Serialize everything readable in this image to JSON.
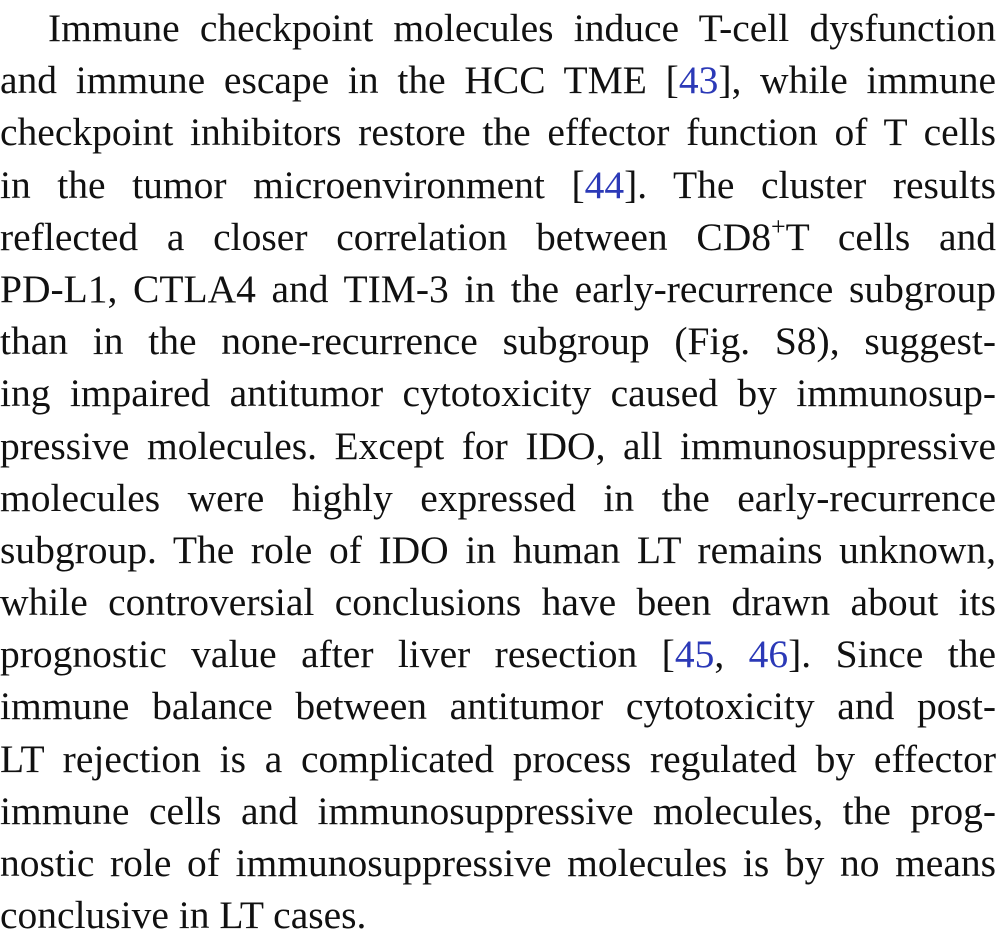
{
  "paragraph": {
    "lines": [
      {
        "a": "Immune checkpoint molecules induce T-cell dysfunction"
      },
      {
        "a": "and immune escape in the HCC TME [",
        "c1": "43",
        "b": "], while immune"
      },
      {
        "a": "checkpoint inhibitors restore the effector function of T cells"
      },
      {
        "a": "in the tumor microenvironment [",
        "c1": "44",
        "b": "]. The cluster results"
      },
      {
        "a": "reflected a closer correlation between CD8",
        "sup": "+",
        "b": "T cells and"
      },
      {
        "a": "PD-L1, CTLA4 and TIM-3 in the early-recurrence subgroup"
      },
      {
        "a": "than in the none-recurrence subgroup (Fig. S8), suggest-"
      },
      {
        "a": "ing impaired antitumor cytotoxicity caused by immunosup-"
      },
      {
        "a": "pressive molecules. Except for IDO, all immunosuppressive"
      },
      {
        "a": "molecules were highly expressed in the early-recurrence"
      },
      {
        "a": "subgroup. The role of IDO in human LT remains unknown,"
      },
      {
        "a": "while controversial conclusions have been drawn about its"
      },
      {
        "a": "prognostic value after liver resection [",
        "c1": "45",
        "m": ", ",
        "c2": "46",
        "b": "]. Since the"
      },
      {
        "a": "immune balance between antitumor cytotoxicity and post-"
      },
      {
        "a": "LT rejection is a complicated process regulated by effector"
      },
      {
        "a": "immune cells and immunosuppressive molecules, the prog-"
      },
      {
        "a": "nostic role of immunosuppressive molecules is by no means"
      },
      {
        "a": "conclusive in LT cases."
      }
    ]
  }
}
